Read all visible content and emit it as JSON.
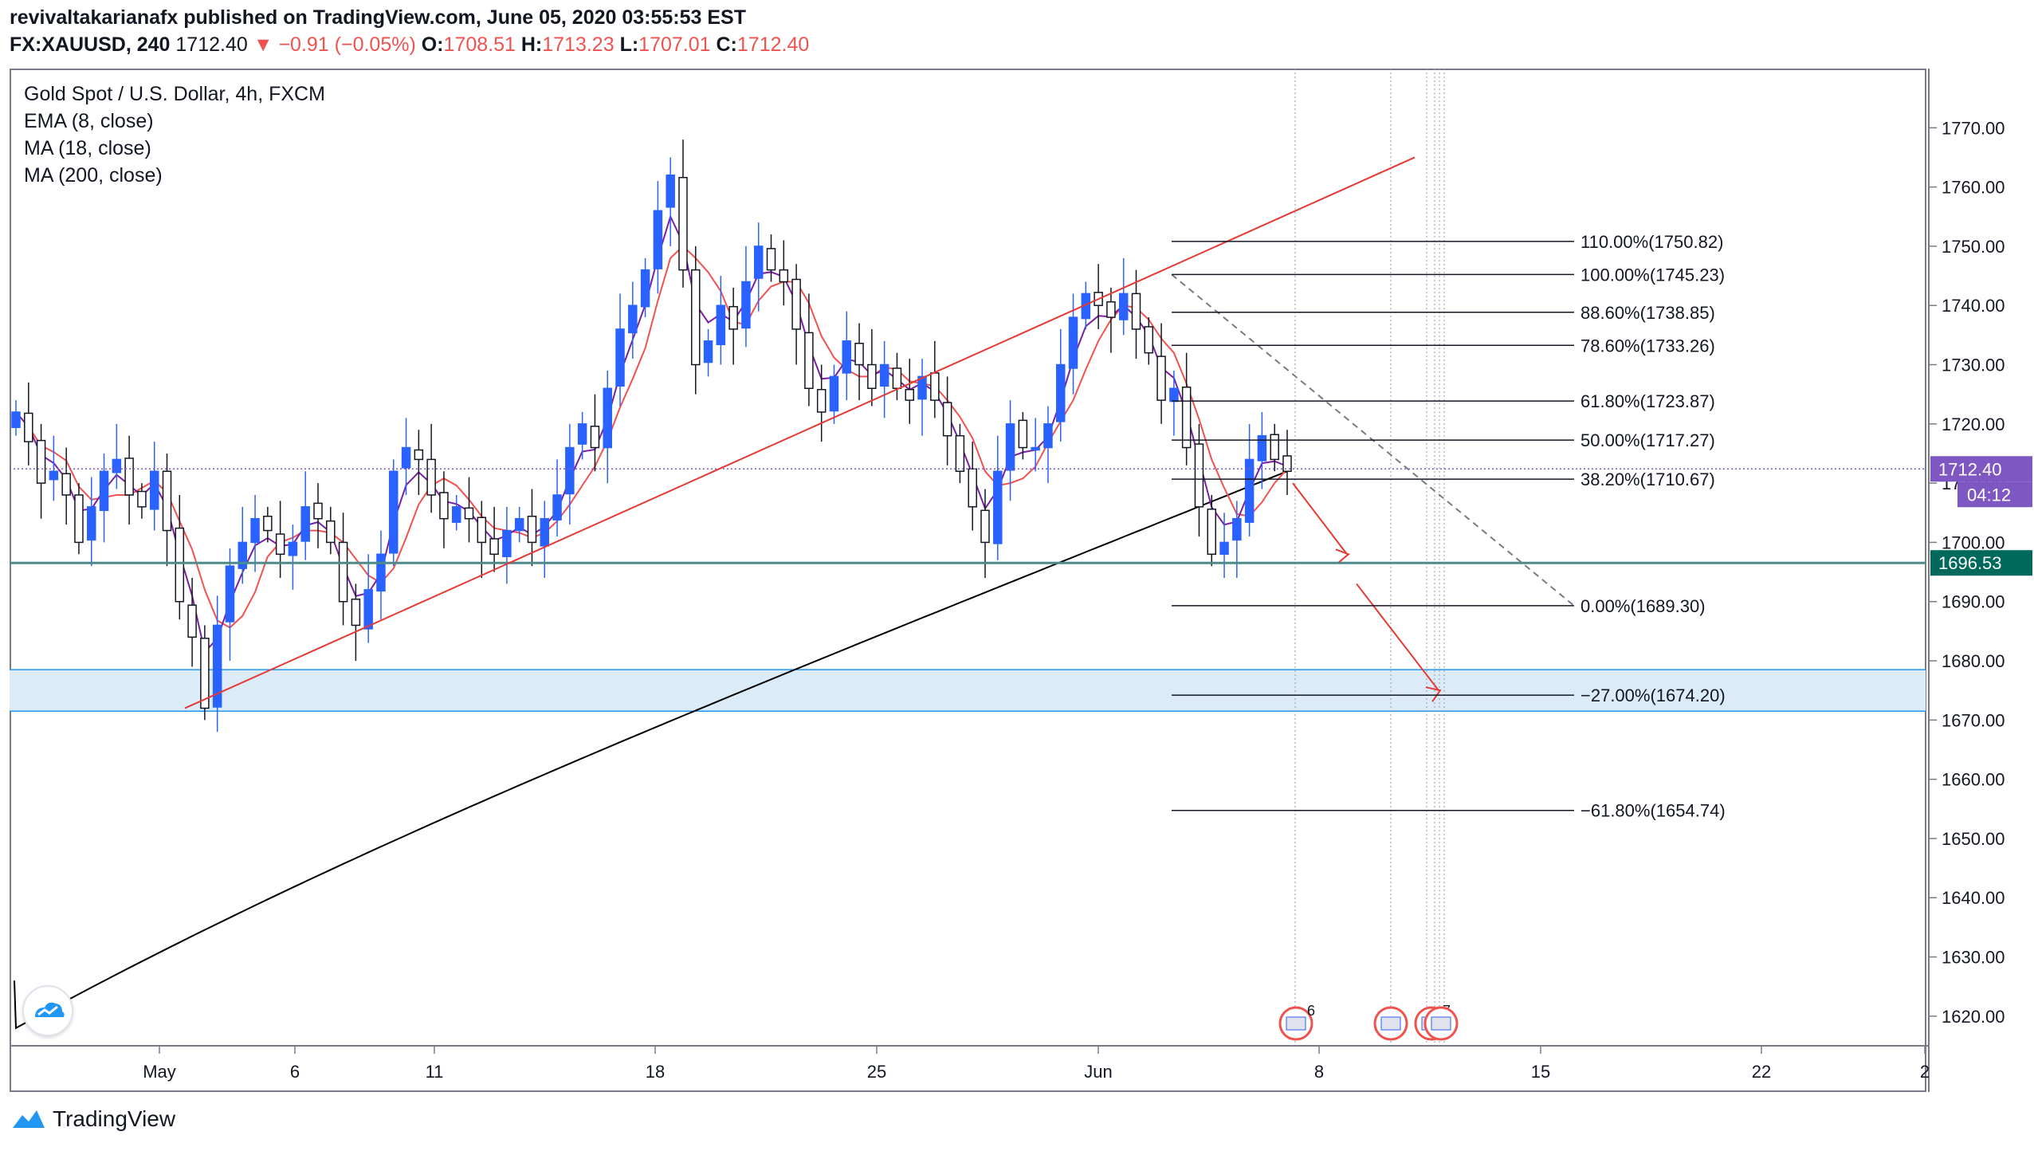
{
  "header": {
    "published": "revivaltakarianafx published on TradingView.com, June 05, 2020 03:55:53 EST",
    "symbol": "FX:XAUUSD, 240",
    "last": "1712.40",
    "change_arrow": "▼",
    "change": "−0.91 (−0.05%)",
    "o_label": "O:",
    "o_val": "1708.51",
    "h_label": "H:",
    "h_val": "1713.23",
    "l_label": "L:",
    "l_val": "1707.01",
    "c_label": "C:",
    "c_val": "1712.40"
  },
  "legend": {
    "title": "Gold Spot / U.S. Dollar, 4h, FXCM",
    "ema": "EMA (8, close)",
    "ma18": "MA (18, close)",
    "ma200": "MA (200, close)"
  },
  "footer": {
    "brand": "TradingView"
  },
  "colors": {
    "up": "#2962ff",
    "down": "#131722",
    "ema": "#7b1fa2",
    "ma18": "#ef5350",
    "ma200": "#000000",
    "trend": "#e53935",
    "support": "#4e8a8a",
    "zone": "#dcebf8",
    "zone_border": "#2196f3",
    "price_label": "#7e57c2",
    "support_label": "#00695c"
  },
  "chart_data": {
    "type": "candlestick",
    "y_axis": {
      "min": 1615,
      "max": 1780,
      "ticks": [
        "1620.00",
        "1630.00",
        "1640.00",
        "1650.00",
        "1660.00",
        "1670.00",
        "1680.00",
        "1690.00",
        "1700.00",
        "1710.00",
        "1720.00",
        "1730.00",
        "1740.00",
        "1750.00",
        "1760.00",
        "1770.00"
      ]
    },
    "x_axis": {
      "ticks": [
        "May",
        "6",
        "11",
        "18",
        "25",
        "Jun",
        "8",
        "15",
        "22",
        "2"
      ]
    },
    "last_price": {
      "value": "1712.40",
      "countdown": "04:12"
    },
    "support_level": {
      "value": "1696.53"
    },
    "demand_zone": {
      "from": 1671.5,
      "to": 1678.5
    },
    "fibonacci": [
      {
        "label": "110.00%(1750.82)",
        "value": 1750.82
      },
      {
        "label": "100.00%(1745.23)",
        "value": 1745.23
      },
      {
        "label": "88.60%(1738.85)",
        "value": 1738.85
      },
      {
        "label": "78.60%(1733.26)",
        "value": 1733.26
      },
      {
        "label": "61.80%(1723.87)",
        "value": 1723.87
      },
      {
        "label": "50.00%(1717.27)",
        "value": 1717.27
      },
      {
        "label": "38.20%(1710.67)",
        "value": 1710.67
      },
      {
        "label": "0.00%(1689.30)",
        "value": 1689.3
      },
      {
        "label": "−27.00%(1674.20)",
        "value": 1674.2
      },
      {
        "label": "−61.80%(1654.74)",
        "value": 1654.74
      }
    ],
    "events": [
      {
        "label": "6"
      },
      {
        "label": "7"
      }
    ],
    "close_path": [
      1722,
      1717,
      1710,
      1712,
      1708,
      1700,
      1706,
      1712,
      1714,
      1708,
      1706,
      1712,
      1702,
      1690,
      1684,
      1672,
      1686,
      1696,
      1700,
      1704,
      1702,
      1698,
      1700,
      1706,
      1704,
      1700,
      1690,
      1686,
      1692,
      1698,
      1712,
      1716,
      1714,
      1708,
      1704,
      1706,
      1704,
      1700,
      1698,
      1702,
      1704,
      1700,
      1704,
      1708,
      1716,
      1720,
      1716,
      1726,
      1736,
      1740,
      1746,
      1756,
      1762,
      1746,
      1730,
      1734,
      1740,
      1736,
      1744,
      1750,
      1746,
      1744,
      1736,
      1726,
      1722,
      1728,
      1734,
      1730,
      1726,
      1730,
      1726,
      1724,
      1728,
      1724,
      1718,
      1712,
      1706,
      1700,
      1712,
      1720,
      1716,
      1716,
      1720,
      1730,
      1738,
      1742,
      1740,
      1738,
      1742,
      1736,
      1732,
      1724,
      1726,
      1716,
      1706,
      1698,
      1700,
      1704,
      1714,
      1718,
      1714,
      1712
    ]
  }
}
